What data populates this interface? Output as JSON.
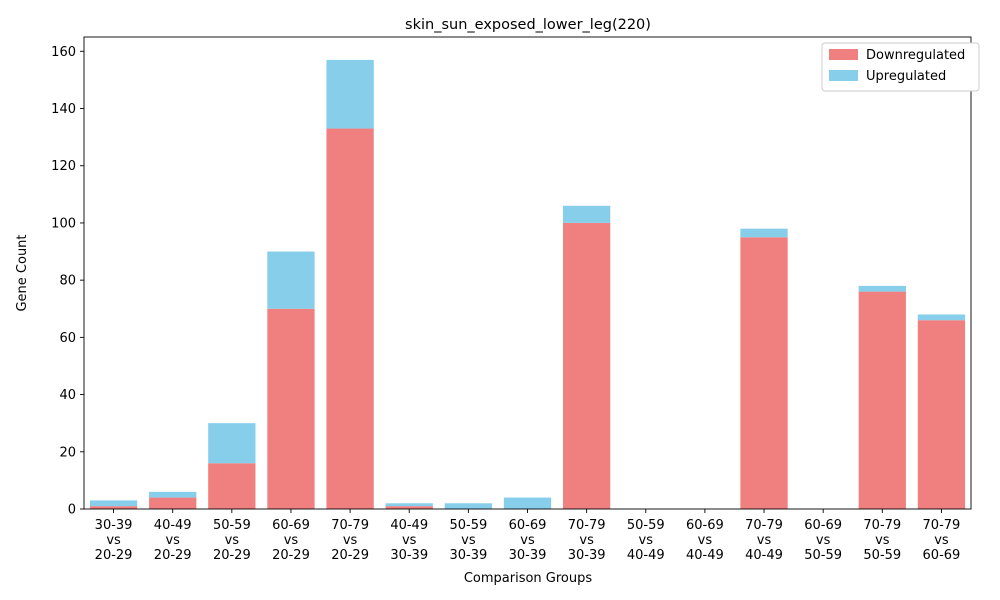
{
  "chart_data": {
    "type": "bar",
    "stacked": true,
    "title": "skin_sun_exposed_lower_leg(220)",
    "xlabel": "Comparison Groups",
    "ylabel": "Gene Count",
    "ylim": [
      0,
      165
    ],
    "yticks": [
      0,
      20,
      40,
      60,
      80,
      100,
      120,
      140,
      160
    ],
    "legend_position": "top-right",
    "grid": false,
    "categories": [
      [
        "30-39",
        "vs",
        "20-29"
      ],
      [
        "40-49",
        "vs",
        "20-29"
      ],
      [
        "50-59",
        "vs",
        "20-29"
      ],
      [
        "60-69",
        "vs",
        "20-29"
      ],
      [
        "70-79",
        "vs",
        "20-29"
      ],
      [
        "40-49",
        "vs",
        "30-39"
      ],
      [
        "50-59",
        "vs",
        "30-39"
      ],
      [
        "60-69",
        "vs",
        "30-39"
      ],
      [
        "70-79",
        "vs",
        "30-39"
      ],
      [
        "50-59",
        "vs",
        "40-49"
      ],
      [
        "60-69",
        "vs",
        "40-49"
      ],
      [
        "70-79",
        "vs",
        "40-49"
      ],
      [
        "60-69",
        "vs",
        "50-59"
      ],
      [
        "70-79",
        "vs",
        "50-59"
      ],
      [
        "70-79",
        "vs",
        "60-69"
      ]
    ],
    "series": [
      {
        "name": "Downregulated",
        "color": "#f08080",
        "values": [
          1,
          4,
          16,
          70,
          133,
          1,
          0,
          0,
          100,
          0,
          0,
          95,
          0,
          76,
          66
        ]
      },
      {
        "name": "Upregulated",
        "color": "#87ceeb",
        "values": [
          2,
          2,
          14,
          20,
          24,
          1,
          2,
          4,
          6,
          0,
          0,
          3,
          0,
          2,
          2
        ]
      }
    ]
  }
}
